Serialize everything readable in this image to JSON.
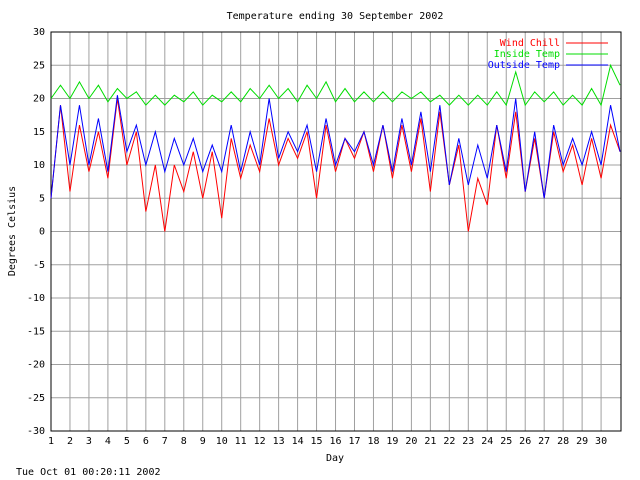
{
  "chart_data": {
    "type": "line",
    "title": "Temperature ending 30 September 2002",
    "xlabel": "Day",
    "ylabel": "Degrees Celsius",
    "footer": "Tue Oct 01 00:20:11 2002",
    "x": [
      1,
      1.5,
      2,
      2.5,
      3,
      3.5,
      4,
      4.5,
      5,
      5.5,
      6,
      6.5,
      7,
      7.5,
      8,
      8.5,
      9,
      9.5,
      10,
      10.5,
      11,
      11.5,
      12,
      12.5,
      13,
      13.5,
      14,
      14.5,
      15,
      15.5,
      16,
      16.5,
      17,
      17.5,
      18,
      18.5,
      19,
      19.5,
      20,
      20.5,
      21,
      21.5,
      22,
      22.5,
      23,
      23.5,
      24,
      24.5,
      25,
      25.5,
      26,
      26.5,
      27,
      27.5,
      28,
      28.5,
      29,
      29.5,
      30,
      30.5,
      31
    ],
    "series": [
      {
        "name": "Wind Chill",
        "color": "#ff0000",
        "values": [
          5,
          19,
          6,
          16,
          9,
          15,
          8,
          20,
          10,
          15,
          3,
          10,
          0,
          10,
          6,
          12,
          5,
          12,
          2,
          14,
          8,
          13,
          9,
          17,
          10,
          14,
          11,
          15,
          5,
          16,
          9,
          14,
          11,
          15,
          9,
          16,
          8,
          16,
          9,
          17,
          6,
          18,
          7,
          13,
          0,
          8,
          4,
          16,
          8,
          18,
          6,
          14,
          5,
          15,
          9,
          13,
          7,
          14,
          8,
          16,
          12
        ]
      },
      {
        "name": "Inside Temp",
        "color": "#00dd00",
        "values": [
          20,
          22,
          20,
          22.5,
          20,
          22,
          19.5,
          21.5,
          20,
          21,
          19,
          20.5,
          19,
          20.5,
          19.5,
          21,
          19,
          20.5,
          19.5,
          21,
          19.5,
          21.5,
          20,
          22,
          20,
          21.5,
          19.5,
          22,
          20,
          22.5,
          19.5,
          21.5,
          19.5,
          21,
          19.5,
          21,
          19.5,
          21,
          20,
          21,
          19.5,
          20.5,
          19,
          20.5,
          19,
          20.5,
          19,
          21,
          19,
          24,
          19,
          21,
          19.5,
          21,
          19,
          20.5,
          19,
          21.5,
          19,
          25,
          22
        ]
      },
      {
        "name": "Outside Temp",
        "color": "#0000ff",
        "values": [
          5,
          19,
          10,
          19,
          10,
          17,
          9,
          20.5,
          12,
          16,
          10,
          15,
          9,
          14,
          10,
          14,
          9,
          13,
          9,
          16,
          9,
          15,
          10,
          20,
          11,
          15,
          12,
          16,
          9,
          17,
          10,
          14,
          12,
          15,
          10,
          16,
          9,
          17,
          10,
          18,
          9,
          19,
          7,
          14,
          7,
          13,
          8,
          16,
          9,
          20,
          6,
          15,
          5,
          16,
          10,
          14,
          10,
          15,
          10,
          19,
          12
        ]
      }
    ],
    "xlim": [
      1,
      31.05
    ],
    "ylim": [
      -30,
      30
    ],
    "xticks": [
      1,
      2,
      3,
      4,
      5,
      6,
      7,
      8,
      9,
      10,
      11,
      12,
      13,
      14,
      15,
      16,
      17,
      18,
      19,
      20,
      21,
      22,
      23,
      24,
      25,
      26,
      27,
      28,
      29,
      30
    ],
    "yticks": [
      -30,
      -25,
      -20,
      -15,
      -10,
      -5,
      0,
      5,
      10,
      15,
      20,
      25,
      30
    ],
    "grid": true,
    "legend": "upper right"
  }
}
